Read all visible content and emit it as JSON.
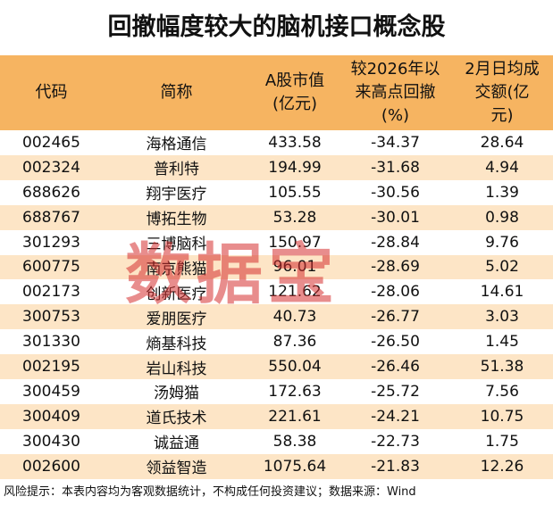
{
  "header": {
    "title": "回撤幅度较大的脑机接口概念股"
  },
  "table": {
    "columns": [
      "代码",
      "简称",
      "A股市值\n(亿元)",
      "较2026年以\n来高点回撤\n(%)",
      "2月日均成\n交额(亿\n元)"
    ],
    "rows": [
      [
        "002465",
        "海格通信",
        "433.58",
        "-34.37",
        "28.64"
      ],
      [
        "002324",
        "普利特",
        "194.99",
        "-31.68",
        "4.94"
      ],
      [
        "688626",
        "翔宇医疗",
        "105.55",
        "-30.56",
        "1.39"
      ],
      [
        "688767",
        "博拓生物",
        "53.28",
        "-30.01",
        "0.98"
      ],
      [
        "301293",
        "三博脑科",
        "150.97",
        "-28.84",
        "9.76"
      ],
      [
        "600775",
        "南京熊猫",
        "96.01",
        "-28.69",
        "5.02"
      ],
      [
        "002173",
        "创新医疗",
        "121.62",
        "-28.06",
        "14.61"
      ],
      [
        "300753",
        "爱朋医疗",
        "40.73",
        "-26.77",
        "3.03"
      ],
      [
        "301330",
        "熵基科技",
        "87.36",
        "-26.50",
        "1.45"
      ],
      [
        "002195",
        "岩山科技",
        "550.04",
        "-26.46",
        "51.38"
      ],
      [
        "300459",
        "汤姆猫",
        "172.63",
        "-25.72",
        "7.56"
      ],
      [
        "300409",
        "道氏技术",
        "221.61",
        "-24.21",
        "10.75"
      ],
      [
        "300430",
        "诚益通",
        "58.38",
        "-22.73",
        "1.75"
      ],
      [
        "002600",
        "领益智造",
        "1075.64",
        "-21.83",
        "12.26"
      ]
    ]
  },
  "footer": {
    "note": "风险提示：本表内容均为客观数据统计，不构成任何投资建议；数据来源：Wind"
  },
  "watermark": "数据宝"
}
